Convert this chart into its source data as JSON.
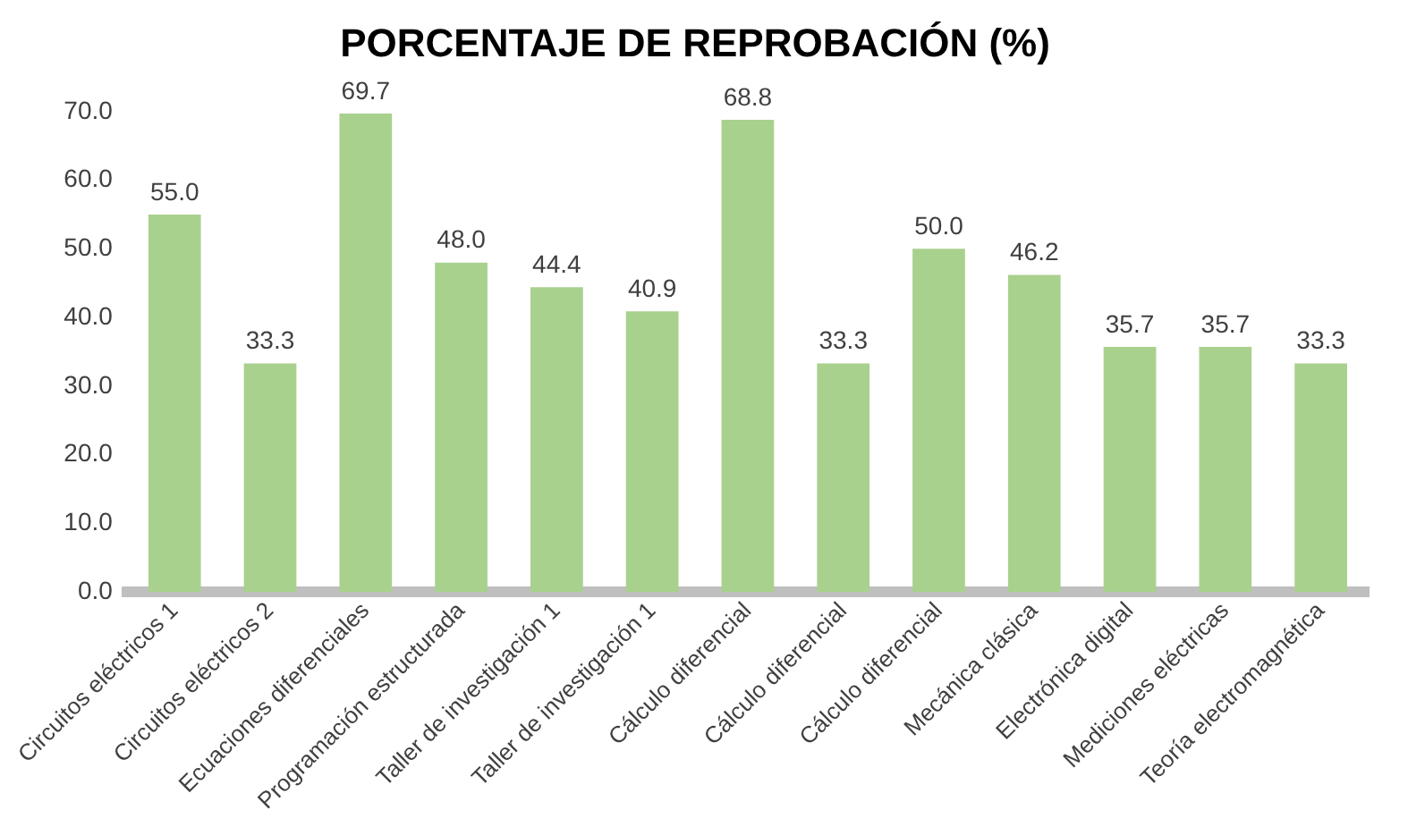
{
  "chart_data": {
    "type": "bar",
    "title": "PORCENTAJE DE REPROBACIÓN (%)",
    "categories": [
      "Circuitos eléctricos 1",
      "Circuitos eléctricos 2",
      "Ecuaciones diferenciales",
      "Programación estructurada",
      "Taller de investigación 1",
      "Taller de investigación 1",
      "Cálculo diferencial",
      "Cálculo diferencial",
      "Cálculo diferencial",
      "Mecánica clásica",
      "Electrónica digital",
      "Mediciones eléctricas",
      "Teoría electromagnética"
    ],
    "values": [
      55.0,
      33.3,
      69.7,
      48.0,
      44.4,
      40.9,
      68.8,
      33.3,
      50.0,
      46.2,
      35.7,
      35.7,
      33.3
    ],
    "value_labels": [
      "55.0",
      "33.3",
      "69.7",
      "48.0",
      "44.4",
      "40.9",
      "68.8",
      "33.3",
      "50.0",
      "46.2",
      "35.7",
      "35.7",
      "33.3"
    ],
    "color": "#a9d18e",
    "ylim": [
      0,
      70
    ],
    "yticks": [
      {
        "value": 0,
        "label": "0.0"
      },
      {
        "value": 10,
        "label": "10.0"
      },
      {
        "value": 20,
        "label": "20.0"
      },
      {
        "value": 30,
        "label": "30.0"
      },
      {
        "value": 40,
        "label": "40.0"
      },
      {
        "value": 50,
        "label": "50.0"
      },
      {
        "value": 60,
        "label": "60.0"
      },
      {
        "value": 70,
        "label": "70.0"
      }
    ],
    "grid": false,
    "legend": false
  }
}
